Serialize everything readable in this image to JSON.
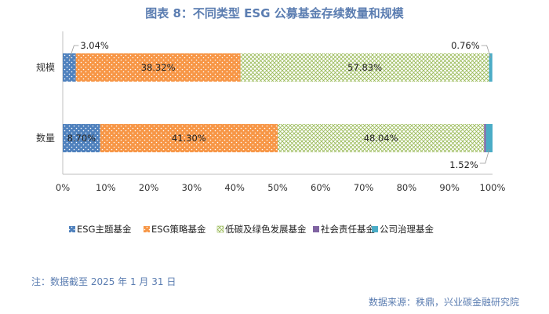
{
  "header": {
    "title": "图表 8：不同类型 ESG 公募基金存续数量和规模"
  },
  "chart_data": {
    "type": "bar",
    "stacked": true,
    "percent_stacked": true,
    "orientation": "horizontal",
    "categories": [
      "规模",
      "数量"
    ],
    "series": [
      {
        "name": "ESG主题基金",
        "values": [
          3.04,
          8.7
        ],
        "labels": [
          "3.04%",
          "8.70%"
        ],
        "color": "#4f81bd",
        "pattern": "dots"
      },
      {
        "name": "ESG策略基金",
        "values": [
          38.32,
          41.3
        ],
        "labels": [
          "38.32%",
          "41.30%"
        ],
        "color": "#f79646",
        "pattern": "dots"
      },
      {
        "name": "低碳及绿色发展基金",
        "values": [
          57.83,
          48.04
        ],
        "labels": [
          "57.83%",
          "48.04%"
        ],
        "color": "#9bbb59",
        "pattern": "crosshatch"
      },
      {
        "name": "社会责任基金",
        "values": [
          0.0,
          0.44
        ],
        "labels": [
          "",
          ""
        ],
        "color": "#8064a2",
        "pattern": "solid"
      },
      {
        "name": "公司治理基金",
        "values": [
          0.76,
          1.52
        ],
        "labels": [
          "0.76%",
          "1.52%"
        ],
        "color": "#4bacc6",
        "pattern": "solid"
      }
    ],
    "xlim": [
      0,
      100
    ],
    "x_ticks": [
      "0%",
      "10%",
      "20%",
      "30%",
      "40%",
      "50%",
      "60%",
      "70%",
      "80%",
      "90%",
      "100%"
    ],
    "legend": "bottom",
    "grid": false
  },
  "footer": {
    "note": "注：数据截至 2025 年 1 月 31 日",
    "source": "数据来源：秩鼎，兴业碳金融研究院"
  }
}
